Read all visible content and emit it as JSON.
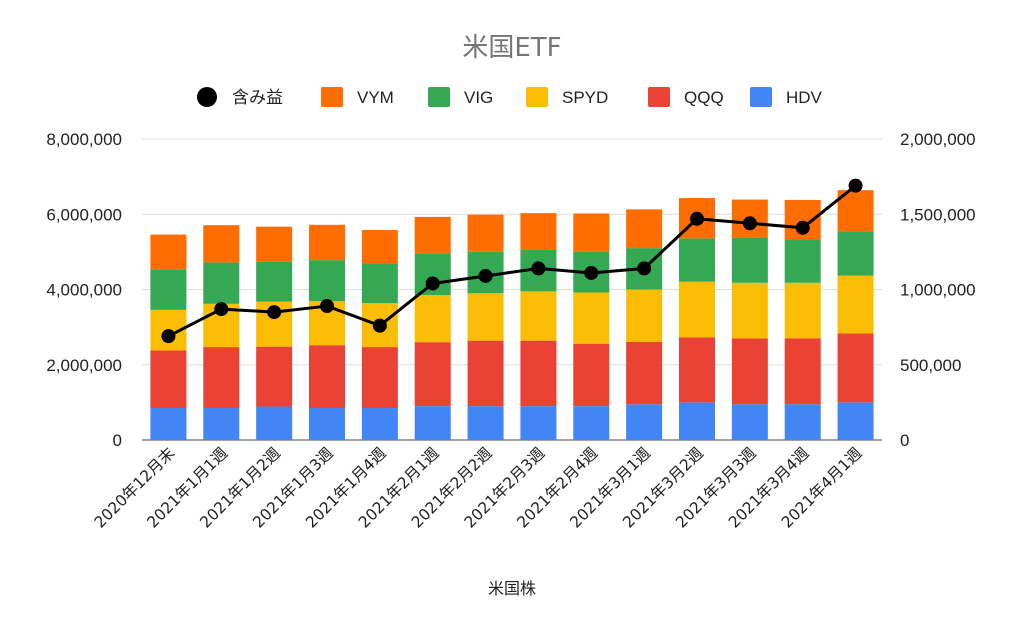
{
  "chart_data": {
    "type": "bar",
    "stacked": true,
    "title": "米国ETF",
    "xlabel": "米国株",
    "ylabel": "",
    "ylabel_right": "",
    "legend_position": "top",
    "categories": [
      "2020年12月末",
      "2021年1月1週",
      "2021年1月2週",
      "2021年1月3週",
      "2021年1月4週",
      "2021年2月1週",
      "2021年2月2週",
      "2021年2月3週",
      "2021年2月4週",
      "2021年3月1週",
      "2021年3月2週",
      "2021年3月3週",
      "2021年3月4週",
      "2021年4月1週"
    ],
    "ylim": [
      0,
      8000000
    ],
    "ylim_right": [
      0,
      2000000
    ],
    "yticks": [
      "0",
      "2,000,000",
      "4,000,000",
      "6,000,000",
      "8,000,000"
    ],
    "yticks_right": [
      "0",
      "500,000",
      "1,000,000",
      "1,500,000",
      "2,000,000"
    ],
    "grid": true,
    "series": [
      {
        "name": "HDV",
        "color": "#4285f4",
        "values": [
          850000,
          850000,
          890000,
          850000,
          850000,
          900000,
          900000,
          900000,
          900000,
          950000,
          1000000,
          950000,
          950000,
          1000000
        ]
      },
      {
        "name": "QQQ",
        "color": "#ea4335",
        "values": [
          1530000,
          1620000,
          1590000,
          1670000,
          1620000,
          1700000,
          1740000,
          1740000,
          1660000,
          1660000,
          1730000,
          1750000,
          1750000,
          1830000
        ]
      },
      {
        "name": "SPYD",
        "color": "#fbbc04",
        "values": [
          1080000,
          1150000,
          1200000,
          1170000,
          1170000,
          1250000,
          1260000,
          1310000,
          1360000,
          1390000,
          1480000,
          1480000,
          1480000,
          1540000
        ]
      },
      {
        "name": "VIG",
        "color": "#34a853",
        "values": [
          1080000,
          1100000,
          1060000,
          1090000,
          1050000,
          1110000,
          1100000,
          1100000,
          1080000,
          1100000,
          1150000,
          1190000,
          1150000,
          1170000
        ]
      },
      {
        "name": "VYM",
        "color": "#ff6d01",
        "values": [
          920000,
          990000,
          930000,
          940000,
          890000,
          970000,
          990000,
          980000,
          1020000,
          1030000,
          1070000,
          1020000,
          1050000,
          1100000
        ]
      }
    ],
    "line_series": {
      "name": "含み益",
      "axis": "right",
      "color": "#000000",
      "values": [
        690000,
        870000,
        850000,
        890000,
        760000,
        1040000,
        1090000,
        1140000,
        1110000,
        1140000,
        1470000,
        1440000,
        1410000,
        1690000
      ]
    },
    "legend_order": [
      "含み益",
      "VYM",
      "VIG",
      "SPYD",
      "QQQ",
      "HDV"
    ]
  }
}
